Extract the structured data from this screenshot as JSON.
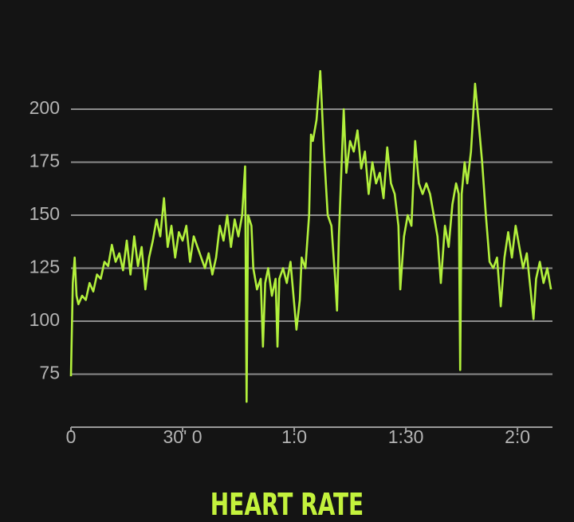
{
  "chart_data": {
    "type": "line",
    "title": "HEART RATE",
    "color": "#b2f03c",
    "grid": true,
    "xlim": [
      0,
      129.4
    ],
    "xticks": [
      0,
      {
        "value": 30,
        "label": "30' 0"
      },
      {
        "value": 60,
        "label": "1:0"
      },
      {
        "value": 90,
        "label": "1:30"
      },
      {
        "value": 120,
        "label": "2:0"
      }
    ],
    "ylim": [
      50,
      225
    ],
    "yticks": [
      75,
      100,
      125,
      150,
      175,
      200
    ],
    "x": [
      0,
      0.5,
      1,
      1.5,
      2,
      3,
      4,
      5,
      6,
      7,
      8,
      9,
      10,
      11,
      12,
      13,
      14,
      15,
      16,
      17,
      18,
      19,
      20,
      21,
      22,
      23,
      24,
      25,
      26,
      27,
      28,
      29,
      30,
      31,
      32,
      33,
      34,
      35,
      36,
      37,
      38,
      39,
      40,
      41,
      42,
      43,
      44,
      45,
      46,
      46.8,
      47.2,
      47.6,
      48.5,
      49,
      50,
      51,
      51.6,
      52.2,
      53,
      54,
      55,
      55.5,
      56,
      57,
      58,
      59,
      60.6,
      61.5,
      62,
      63,
      64,
      64.5,
      65,
      66,
      67,
      68,
      69,
      70,
      71,
      71.5,
      72,
      73.3,
      74,
      75,
      76,
      77,
      78,
      79,
      80,
      81,
      82,
      83,
      84,
      85,
      86,
      87,
      88,
      88.5,
      89.5,
      90.5,
      91.5,
      92.5,
      93.5,
      94.5,
      95.5,
      96.5,
      97.5,
      98.5,
      99.4,
      100.5,
      101.5,
      102.5,
      103.5,
      104.2,
      104.6,
      105,
      105.8,
      106.5,
      107.5,
      108.6,
      109.5,
      110.5,
      111.5,
      112.5,
      113.5,
      114.5,
      115.5,
      116.5,
      117.5,
      118.5,
      119.5,
      120.5,
      121.5,
      122.5,
      123.5,
      124.3,
      125,
      126,
      127,
      128,
      129
    ],
    "values": [
      74,
      118,
      130,
      112,
      108,
      112,
      110,
      118,
      114,
      122,
      120,
      128,
      126,
      136,
      128,
      132,
      124,
      138,
      122,
      140,
      126,
      135,
      115,
      130,
      138,
      148,
      140,
      158,
      135,
      145,
      130,
      142,
      138,
      145,
      128,
      140,
      135,
      130,
      125,
      132,
      122,
      130,
      145,
      138,
      150,
      135,
      148,
      140,
      150,
      173,
      62,
      150,
      145,
      125,
      115,
      120,
      88,
      118,
      125,
      112,
      120,
      88,
      120,
      125,
      118,
      128,
      96,
      110,
      130,
      125,
      150,
      188,
      185,
      195,
      218,
      180,
      150,
      145,
      120,
      105,
      140,
      200,
      170,
      185,
      180,
      190,
      172,
      180,
      160,
      175,
      165,
      170,
      158,
      182,
      165,
      160,
      145,
      115,
      140,
      150,
      145,
      185,
      165,
      160,
      165,
      160,
      150,
      140,
      118,
      145,
      135,
      155,
      165,
      160,
      77,
      160,
      175,
      165,
      180,
      212,
      195,
      175,
      150,
      128,
      125,
      130,
      107,
      130,
      142,
      130,
      145,
      135,
      125,
      132,
      115,
      101,
      120,
      128,
      118,
      125,
      115
    ]
  }
}
